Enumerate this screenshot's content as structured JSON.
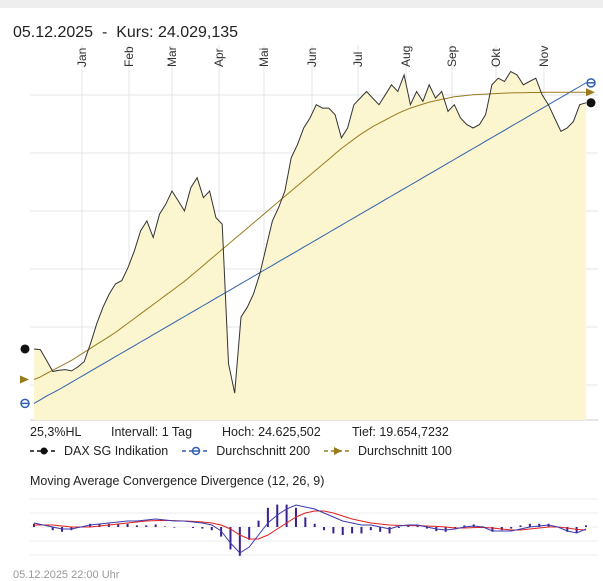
{
  "header": {
    "date": "05.12.2025",
    "separator": "-",
    "kurs_label": "Kurs:",
    "kurs_value": "24.029,135"
  },
  "stats": {
    "range_pct": "25,3%HL",
    "interval": "Intervall: 1 Tag",
    "high": "Hoch: 24.625,502",
    "low": "Tief: 19.654,7232"
  },
  "legend": [
    {
      "label": "DAX SG Indikation",
      "color": "#111111",
      "marker": "dot"
    },
    {
      "label": "Durchschnitt 200",
      "color": "#2f5fb0",
      "marker": "dot"
    },
    {
      "label": "Durchschnitt 100",
      "color": "#9b7a1e",
      "marker": "arrow"
    }
  ],
  "macd_title": "Moving Average Convergence Divergence (12, 26, 9)",
  "footer": "05.12.2025 22:00 Uhr",
  "colors": {
    "area_fill": "#fbf6cf",
    "price_line": "#333333",
    "ma200": "#2f5fb0",
    "ma100": "#9b7a1e",
    "macd_line": "#3a3ab0",
    "signal_line": "#e02020",
    "histogram": "#3b1f8f",
    "grid": "#e4e4e4"
  },
  "chart_data": [
    {
      "type": "line",
      "title": "",
      "x_tick_labels": [
        "Jan",
        "Feb",
        "Mar",
        "Apr",
        "Mai",
        "Jun",
        "Jul",
        "Aug",
        "Sep",
        "Okt",
        "Nov"
      ],
      "ylim": [
        19654.7232,
        24625.502
      ],
      "grid": true,
      "series": [
        {
          "name": "DAX SG Indikation",
          "values": [
            20320,
            20310,
            20150,
            19980,
            20000,
            20010,
            19990,
            20050,
            20130,
            20400,
            20700,
            20950,
            21150,
            21300,
            21350,
            21550,
            21800,
            22100,
            22250,
            22000,
            22350,
            22500,
            22700,
            22550,
            22400,
            22750,
            22900,
            22600,
            22700,
            22300,
            22200,
            20100,
            19655,
            20800,
            20950,
            21150,
            21450,
            21850,
            22250,
            22450,
            22700,
            23200,
            23400,
            23650,
            23800,
            24000,
            23950,
            23950,
            23850,
            23500,
            23650,
            24000,
            24100,
            24200,
            24100,
            24000,
            24150,
            24300,
            24200,
            24450,
            24000,
            24200,
            24050,
            24300,
            24100,
            24200,
            23900,
            24000,
            23800,
            23700,
            23650,
            23700,
            23850,
            24300,
            24400,
            24350,
            24500,
            24450,
            24300,
            24350,
            24400,
            24150,
            24000,
            23800,
            23600,
            23650,
            23750,
            24000,
            24029
          ]
        },
        {
          "name": "Durchschnitt 200",
          "values": [
            19500,
            19555,
            19610,
            19660,
            19710,
            19765,
            19820,
            19875,
            19930,
            19985,
            20040,
            20095,
            20150,
            20205,
            20260,
            20315,
            20370,
            20425,
            20480,
            20535,
            20590,
            20645,
            20700,
            20755,
            20810,
            20865,
            20920,
            20975,
            21030,
            21085,
            21140,
            21195,
            21250,
            21305,
            21360,
            21415,
            21470,
            21525,
            21580,
            21635,
            21690,
            21745,
            21800,
            21855,
            21910,
            21965,
            22020,
            22075,
            22130,
            22185,
            22240,
            22295,
            22350,
            22405,
            22460,
            22515,
            22570,
            22625,
            22680,
            22735,
            22790,
            22845,
            22900,
            22955,
            23010,
            23065,
            23120,
            23175,
            23230,
            23285,
            23340,
            23395,
            23450,
            23505,
            23560,
            23615,
            23670,
            23725,
            23780,
            23835,
            23890,
            23945,
            24000,
            24055,
            24110,
            24165,
            24220,
            24275,
            24330
          ]
        },
        {
          "name": "Durchschnitt 100",
          "values": [
            19860,
            19900,
            19950,
            20000,
            20050,
            20100,
            20150,
            20210,
            20270,
            20330,
            20390,
            20450,
            20510,
            20570,
            20640,
            20710,
            20780,
            20850,
            20920,
            20990,
            21060,
            21130,
            21200,
            21270,
            21340,
            21420,
            21500,
            21580,
            21660,
            21740,
            21820,
            21900,
            21980,
            22060,
            22140,
            22220,
            22300,
            22380,
            22460,
            22540,
            22620,
            22700,
            22780,
            22860,
            22940,
            23020,
            23100,
            23180,
            23260,
            23340,
            23410,
            23480,
            23550,
            23610,
            23670,
            23720,
            23770,
            23820,
            23870,
            23910,
            23950,
            23980,
            24010,
            24040,
            24060,
            24080,
            24100,
            24120,
            24130,
            24140,
            24150,
            24155,
            24160,
            24165,
            24170,
            24175,
            24178,
            24180,
            24182,
            24184,
            24185,
            24186,
            24187,
            24188,
            24188,
            24188,
            24188,
            24188,
            24188
          ]
        }
      ]
    },
    {
      "type": "line",
      "title": "Moving Average Convergence Divergence (12, 26, 9)",
      "series": [
        {
          "values": [
            0.2,
            0.1,
            0.0,
            -0.1,
            -0.1,
            0.0,
            0.1,
            0.15,
            0.2,
            0.25,
            0.3,
            0.3,
            0.35,
            0.4,
            0.35,
            0.3,
            0.3,
            0.25,
            0.2,
            0.1,
            -0.2,
            -0.8,
            -1.3,
            -1.0,
            -0.4,
            0.2,
            0.6,
            0.9,
            1.1,
            1.0,
            0.9,
            0.7,
            0.5,
            0.3,
            0.2,
            0.1,
            0.1,
            0.0,
            -0.1,
            0.05,
            0.1,
            0.1,
            0.0,
            -0.1,
            -0.15,
            -0.1,
            0.0,
            0.05,
            0.0,
            -0.2,
            -0.2,
            -0.2,
            -0.1,
            0.0,
            0.05,
            0.1,
            0.0,
            -0.2,
            -0.3,
            -0.1
          ]
        },
        {
          "values": [
            0.1,
            0.1,
            0.1,
            0.05,
            0.0,
            0.0,
            0.0,
            0.05,
            0.1,
            0.15,
            0.2,
            0.25,
            0.3,
            0.32,
            0.33,
            0.32,
            0.3,
            0.28,
            0.25,
            0.2,
            0.1,
            -0.1,
            -0.4,
            -0.6,
            -0.6,
            -0.4,
            -0.1,
            0.2,
            0.5,
            0.7,
            0.8,
            0.8,
            0.7,
            0.55,
            0.4,
            0.3,
            0.2,
            0.15,
            0.1,
            0.08,
            0.07,
            0.07,
            0.05,
            0.03,
            0.0,
            -0.05,
            -0.05,
            -0.03,
            -0.02,
            -0.05,
            -0.1,
            -0.15,
            -0.15,
            -0.1,
            -0.05,
            0.0,
            0.0,
            -0.05,
            -0.12,
            -0.15
          ]
        }
      ]
    }
  ]
}
